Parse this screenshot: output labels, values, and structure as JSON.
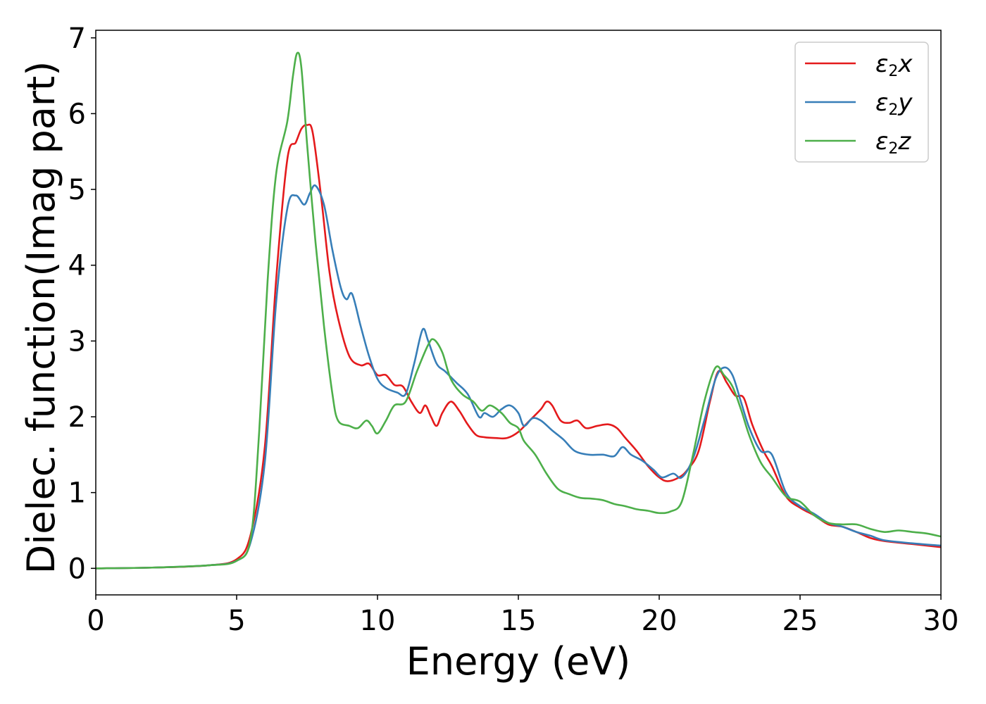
{
  "chart_data": {
    "type": "line",
    "xlabel": "Energy (eV)",
    "ylabel": "Dielec. function(Imag part)",
    "xlim": [
      0,
      30
    ],
    "ylim": [
      -0.35,
      7.1
    ],
    "xticks": [
      0,
      5,
      10,
      15,
      20,
      25,
      30
    ],
    "yticks": [
      0,
      1,
      2,
      3,
      4,
      5,
      6,
      7
    ],
    "grid": false,
    "legend_position": "top-right",
    "series": [
      {
        "name": "ε2x",
        "legend": {
          "base": "ε",
          "sub": "2",
          "tail": "x"
        },
        "color": "#e41a1c",
        "points": [
          [
            0,
            0
          ],
          [
            2,
            0.01
          ],
          [
            4,
            0.04
          ],
          [
            5,
            0.12
          ],
          [
            5.5,
            0.45
          ],
          [
            6,
            1.6
          ],
          [
            6.4,
            3.8
          ],
          [
            6.8,
            5.4
          ],
          [
            7.1,
            5.62
          ],
          [
            7.3,
            5.8
          ],
          [
            7.5,
            5.85
          ],
          [
            7.7,
            5.75
          ],
          [
            8.0,
            4.9
          ],
          [
            8.3,
            3.9
          ],
          [
            8.6,
            3.3
          ],
          [
            9.0,
            2.8
          ],
          [
            9.4,
            2.68
          ],
          [
            9.7,
            2.7
          ],
          [
            10.0,
            2.55
          ],
          [
            10.3,
            2.55
          ],
          [
            10.6,
            2.42
          ],
          [
            10.9,
            2.4
          ],
          [
            11.2,
            2.2
          ],
          [
            11.5,
            2.05
          ],
          [
            11.7,
            2.15
          ],
          [
            11.9,
            2.0
          ],
          [
            12.1,
            1.88
          ],
          [
            12.3,
            2.05
          ],
          [
            12.6,
            2.2
          ],
          [
            12.9,
            2.08
          ],
          [
            13.2,
            1.9
          ],
          [
            13.5,
            1.76
          ],
          [
            13.8,
            1.73
          ],
          [
            14.2,
            1.72
          ],
          [
            14.6,
            1.72
          ],
          [
            15.0,
            1.8
          ],
          [
            15.4,
            1.95
          ],
          [
            15.8,
            2.1
          ],
          [
            16.0,
            2.2
          ],
          [
            16.2,
            2.15
          ],
          [
            16.5,
            1.95
          ],
          [
            16.8,
            1.92
          ],
          [
            17.1,
            1.95
          ],
          [
            17.4,
            1.85
          ],
          [
            17.8,
            1.88
          ],
          [
            18.2,
            1.9
          ],
          [
            18.5,
            1.85
          ],
          [
            18.8,
            1.72
          ],
          [
            19.2,
            1.55
          ],
          [
            19.6,
            1.35
          ],
          [
            20.0,
            1.2
          ],
          [
            20.3,
            1.15
          ],
          [
            20.7,
            1.2
          ],
          [
            21.0,
            1.3
          ],
          [
            21.4,
            1.55
          ],
          [
            21.8,
            2.2
          ],
          [
            22.1,
            2.6
          ],
          [
            22.4,
            2.45
          ],
          [
            22.7,
            2.28
          ],
          [
            23.0,
            2.25
          ],
          [
            23.3,
            1.9
          ],
          [
            23.7,
            1.55
          ],
          [
            24.0,
            1.35
          ],
          [
            24.5,
            0.95
          ],
          [
            25.0,
            0.8
          ],
          [
            25.5,
            0.7
          ],
          [
            26.0,
            0.58
          ],
          [
            26.5,
            0.55
          ],
          [
            27.0,
            0.48
          ],
          [
            27.5,
            0.4
          ],
          [
            28.0,
            0.36
          ],
          [
            29.0,
            0.32
          ],
          [
            30,
            0.28
          ]
        ]
      },
      {
        "name": "ε2y",
        "legend": {
          "base": "ε",
          "sub": "2",
          "tail": "y"
        },
        "color": "#377eb8",
        "points": [
          [
            0,
            0
          ],
          [
            2,
            0.01
          ],
          [
            4,
            0.04
          ],
          [
            5,
            0.1
          ],
          [
            5.5,
            0.35
          ],
          [
            6,
            1.4
          ],
          [
            6.4,
            3.5
          ],
          [
            6.8,
            4.75
          ],
          [
            7.1,
            4.92
          ],
          [
            7.4,
            4.8
          ],
          [
            7.6,
            4.95
          ],
          [
            7.8,
            5.05
          ],
          [
            8.1,
            4.8
          ],
          [
            8.4,
            4.2
          ],
          [
            8.7,
            3.7
          ],
          [
            8.9,
            3.55
          ],
          [
            9.1,
            3.62
          ],
          [
            9.4,
            3.2
          ],
          [
            9.7,
            2.8
          ],
          [
            10.0,
            2.5
          ],
          [
            10.3,
            2.38
          ],
          [
            10.7,
            2.32
          ],
          [
            11.0,
            2.3
          ],
          [
            11.3,
            2.7
          ],
          [
            11.6,
            3.15
          ],
          [
            11.8,
            3.0
          ],
          [
            12.1,
            2.7
          ],
          [
            12.4,
            2.6
          ],
          [
            12.8,
            2.45
          ],
          [
            13.2,
            2.3
          ],
          [
            13.6,
            2.0
          ],
          [
            13.8,
            2.05
          ],
          [
            14.1,
            2.0
          ],
          [
            14.4,
            2.1
          ],
          [
            14.7,
            2.15
          ],
          [
            15.0,
            2.05
          ],
          [
            15.2,
            1.88
          ],
          [
            15.5,
            1.98
          ],
          [
            15.8,
            1.95
          ],
          [
            16.2,
            1.82
          ],
          [
            16.6,
            1.7
          ],
          [
            17.0,
            1.55
          ],
          [
            17.5,
            1.5
          ],
          [
            18.0,
            1.5
          ],
          [
            18.4,
            1.48
          ],
          [
            18.7,
            1.6
          ],
          [
            19.0,
            1.5
          ],
          [
            19.4,
            1.42
          ],
          [
            19.8,
            1.3
          ],
          [
            20.1,
            1.2
          ],
          [
            20.5,
            1.25
          ],
          [
            20.8,
            1.2
          ],
          [
            21.2,
            1.45
          ],
          [
            21.6,
            1.95
          ],
          [
            22.0,
            2.5
          ],
          [
            22.3,
            2.65
          ],
          [
            22.6,
            2.55
          ],
          [
            22.9,
            2.2
          ],
          [
            23.2,
            1.85
          ],
          [
            23.6,
            1.55
          ],
          [
            24.0,
            1.5
          ],
          [
            24.5,
            1.0
          ],
          [
            25.0,
            0.82
          ],
          [
            25.5,
            0.72
          ],
          [
            26.0,
            0.6
          ],
          [
            26.5,
            0.55
          ],
          [
            27.0,
            0.48
          ],
          [
            27.5,
            0.43
          ],
          [
            28.0,
            0.37
          ],
          [
            29.0,
            0.33
          ],
          [
            30,
            0.3
          ]
        ]
      },
      {
        "name": "ε2z",
        "legend": {
          "base": "ε",
          "sub": "2",
          "tail": "z"
        },
        "color": "#4daf4a",
        "points": [
          [
            0,
            0
          ],
          [
            2,
            0.01
          ],
          [
            4,
            0.04
          ],
          [
            5,
            0.1
          ],
          [
            5.5,
            0.4
          ],
          [
            5.8,
            1.8
          ],
          [
            6.1,
            3.8
          ],
          [
            6.4,
            5.2
          ],
          [
            6.8,
            5.9
          ],
          [
            7.0,
            6.5
          ],
          [
            7.15,
            6.8
          ],
          [
            7.3,
            6.6
          ],
          [
            7.5,
            5.6
          ],
          [
            7.8,
            4.3
          ],
          [
            8.1,
            3.2
          ],
          [
            8.4,
            2.3
          ],
          [
            8.6,
            1.95
          ],
          [
            9.0,
            1.88
          ],
          [
            9.3,
            1.85
          ],
          [
            9.6,
            1.95
          ],
          [
            9.8,
            1.88
          ],
          [
            10.0,
            1.78
          ],
          [
            10.3,
            1.95
          ],
          [
            10.6,
            2.15
          ],
          [
            11.0,
            2.2
          ],
          [
            11.4,
            2.6
          ],
          [
            11.8,
            2.95
          ],
          [
            12.0,
            3.02
          ],
          [
            12.3,
            2.85
          ],
          [
            12.6,
            2.5
          ],
          [
            13.0,
            2.3
          ],
          [
            13.4,
            2.2
          ],
          [
            13.7,
            2.08
          ],
          [
            14.0,
            2.15
          ],
          [
            14.4,
            2.05
          ],
          [
            14.7,
            1.92
          ],
          [
            15.0,
            1.85
          ],
          [
            15.2,
            1.68
          ],
          [
            15.6,
            1.5
          ],
          [
            16.0,
            1.25
          ],
          [
            16.4,
            1.05
          ],
          [
            16.8,
            0.98
          ],
          [
            17.2,
            0.93
          ],
          [
            17.6,
            0.92
          ],
          [
            18.0,
            0.9
          ],
          [
            18.4,
            0.85
          ],
          [
            18.8,
            0.82
          ],
          [
            19.2,
            0.78
          ],
          [
            19.6,
            0.76
          ],
          [
            20.0,
            0.73
          ],
          [
            20.4,
            0.75
          ],
          [
            20.8,
            0.88
          ],
          [
            21.2,
            1.5
          ],
          [
            21.6,
            2.2
          ],
          [
            22.0,
            2.65
          ],
          [
            22.3,
            2.55
          ],
          [
            22.6,
            2.4
          ],
          [
            22.9,
            2.1
          ],
          [
            23.2,
            1.75
          ],
          [
            23.6,
            1.4
          ],
          [
            24.0,
            1.2
          ],
          [
            24.5,
            0.95
          ],
          [
            25.0,
            0.88
          ],
          [
            25.5,
            0.7
          ],
          [
            26.0,
            0.6
          ],
          [
            26.5,
            0.58
          ],
          [
            27.0,
            0.58
          ],
          [
            27.5,
            0.52
          ],
          [
            28.0,
            0.48
          ],
          [
            28.5,
            0.5
          ],
          [
            29.0,
            0.48
          ],
          [
            29.5,
            0.46
          ],
          [
            30,
            0.42
          ]
        ]
      }
    ]
  }
}
